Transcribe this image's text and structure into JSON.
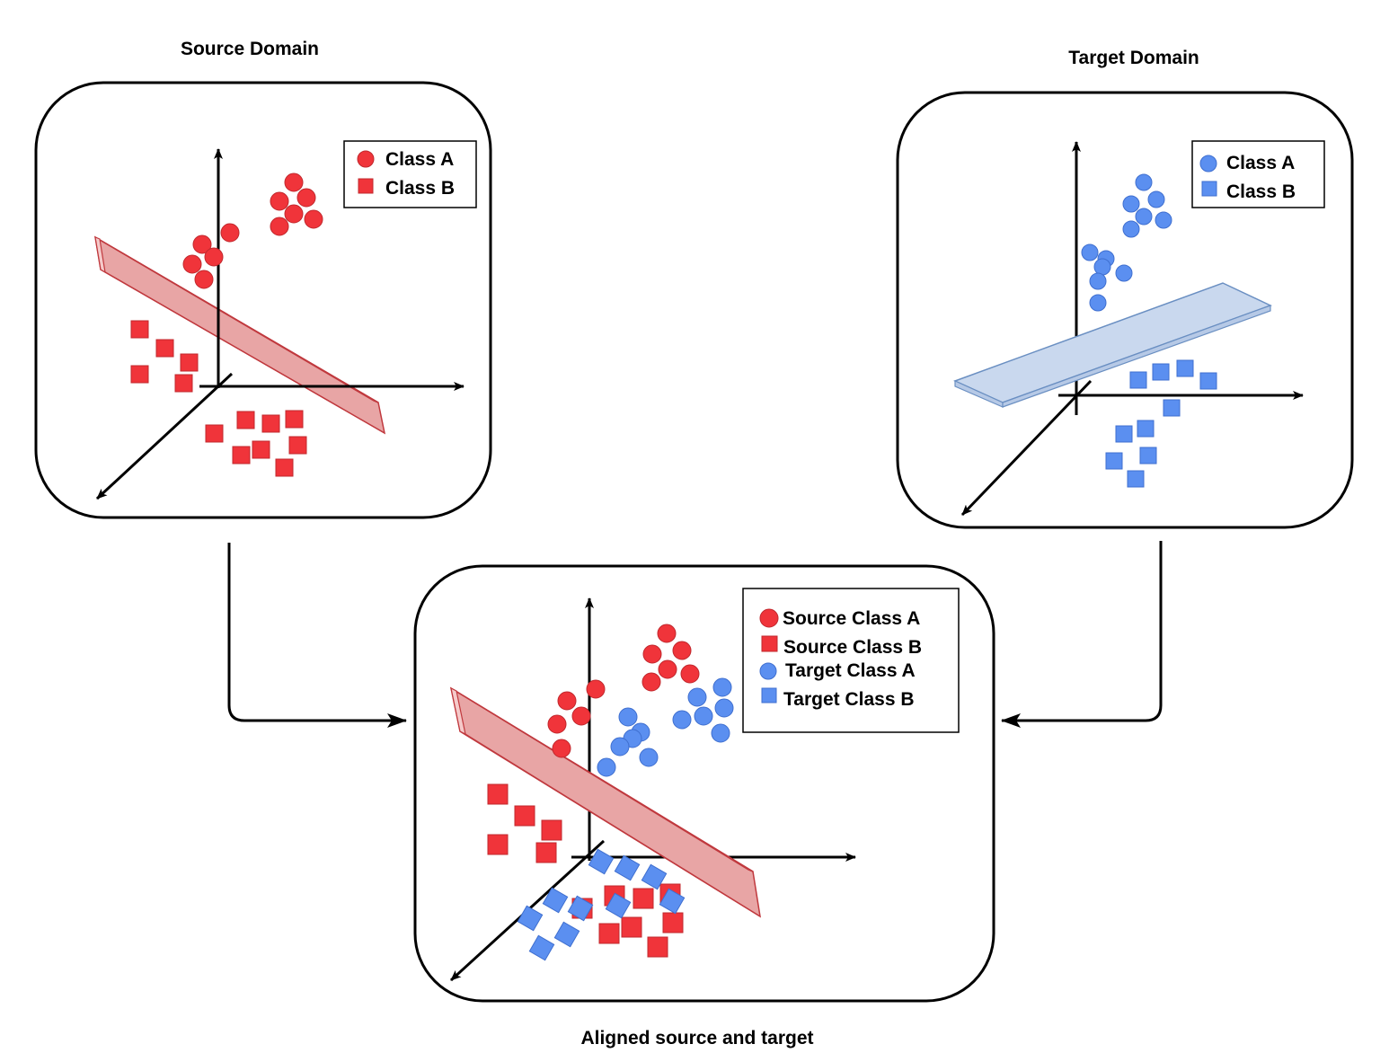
{
  "titles": {
    "source": "Source Domain",
    "target": "Target Domain",
    "aligned": "Aligned source and target"
  },
  "legend_source": {
    "a": "Class A",
    "b": "Class B"
  },
  "legend_target": {
    "a": "Class A",
    "b": "Class B"
  },
  "legend_aligned": {
    "src_a": "Source Class A",
    "src_b": "Source Class B",
    "tgt_a": "Target Class A",
    "tgt_b": "Target Class B"
  },
  "colors": {
    "source": "#f0343a",
    "target": "#5b8ff0",
    "source_plane": "#f2c0c0",
    "target_plane": "#c9d8ee",
    "outline": "#000000"
  },
  "shapes": {
    "class_a": "circle",
    "class_b": "square"
  }
}
